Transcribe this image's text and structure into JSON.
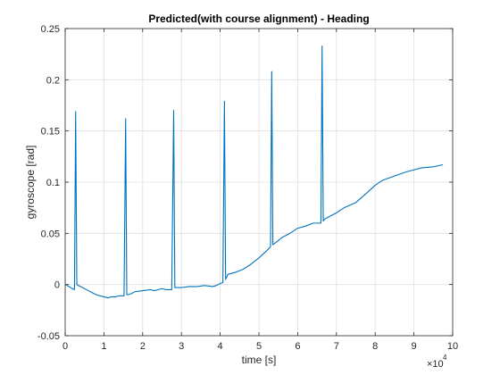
{
  "chart_data": {
    "type": "line",
    "title": "Predicted(with course alignment) - Heading",
    "xlabel": "time [s]",
    "ylabel": "gyroscope [rad]",
    "x_exponent_label": "×10",
    "x_exponent_power": "4",
    "xlim": [
      0,
      100000
    ],
    "ylim": [
      -0.05,
      0.25
    ],
    "xticks": [
      0,
      10000,
      20000,
      30000,
      40000,
      50000,
      60000,
      70000,
      80000,
      90000,
      100000
    ],
    "xtick_labels": [
      "0",
      "1",
      "2",
      "3",
      "4",
      "5",
      "6",
      "7",
      "8",
      "9",
      "10"
    ],
    "yticks": [
      -0.05,
      0,
      0.05,
      0.1,
      0.15,
      0.2,
      0.25
    ],
    "ytick_labels": [
      "-0.05",
      "0",
      "0.05",
      "0.1",
      "0.15",
      "0.2",
      "0.25"
    ],
    "grid": true,
    "series": [
      {
        "color": "#0072bd",
        "x": [
          0,
          500,
          1000,
          1800,
          2400,
          2700,
          3000,
          3400,
          4000,
          6000,
          8000,
          10000,
          11000,
          12000,
          13000,
          14000,
          15200,
          15600,
          15900,
          16200,
          17000,
          18000,
          20000,
          22000,
          23000,
          24000,
          25000,
          26000,
          27500,
          28000,
          28300,
          28600,
          30000,
          32000,
          34000,
          36000,
          38000,
          39000,
          40000,
          40700,
          41100,
          41400,
          42000,
          44000,
          46000,
          48000,
          50000,
          52000,
          53000,
          53300,
          53600,
          54000,
          56000,
          58000,
          60000,
          62000,
          64000,
          66000,
          66300,
          66600,
          67000,
          70000,
          72000,
          75000,
          78000,
          80000,
          82000,
          85000,
          88000,
          90000,
          92000,
          95000,
          97500
        ],
        "y": [
          0.0,
          -0.001,
          -0.002,
          -0.004,
          -0.005,
          0.169,
          0.0,
          -0.001,
          -0.002,
          -0.006,
          -0.01,
          -0.012,
          -0.013,
          -0.012,
          -0.012,
          -0.011,
          -0.011,
          0.162,
          -0.01,
          -0.01,
          -0.009,
          -0.007,
          -0.006,
          -0.005,
          -0.006,
          -0.005,
          -0.004,
          -0.005,
          -0.005,
          0.17,
          -0.003,
          -0.003,
          -0.003,
          -0.002,
          -0.002,
          -0.001,
          -0.002,
          -0.001,
          0.001,
          0.002,
          0.179,
          0.005,
          0.01,
          0.012,
          0.015,
          0.02,
          0.026,
          0.033,
          0.037,
          0.208,
          0.039,
          0.04,
          0.046,
          0.05,
          0.055,
          0.057,
          0.06,
          0.06,
          0.233,
          0.062,
          0.064,
          0.07,
          0.075,
          0.08,
          0.09,
          0.097,
          0.102,
          0.106,
          0.11,
          0.112,
          0.114,
          0.115,
          0.117
        ]
      }
    ]
  }
}
